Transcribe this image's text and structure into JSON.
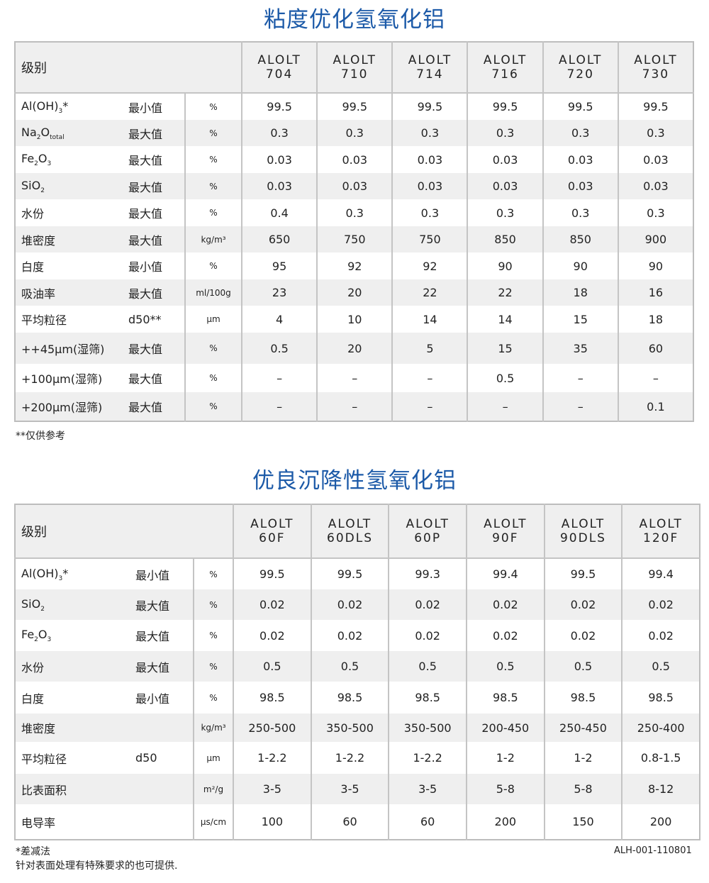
{
  "table1": {
    "title": "粘度优化氢氧化铝",
    "grade_label": "级别",
    "columns": [
      [
        "ALOLT",
        "704"
      ],
      [
        "ALOLT",
        "710"
      ],
      [
        "ALOLT",
        "714"
      ],
      [
        "ALOLT",
        "716"
      ],
      [
        "ALOLT",
        "720"
      ],
      [
        "ALOLT",
        "730"
      ]
    ],
    "rows": [
      {
        "name": [
          {
            "t": "Al(OH)"
          },
          {
            "t": "3",
            "sub": true
          },
          {
            "t": "*"
          }
        ],
        "qual": "最小值",
        "unit": "%",
        "values": [
          "99.5",
          "99.5",
          "99.5",
          "99.5",
          "99.5",
          "99.5"
        ]
      },
      {
        "name": [
          {
            "t": "Na"
          },
          {
            "t": "2",
            "sub": true
          },
          {
            "t": "O"
          },
          {
            "t": "total",
            "sub": true
          }
        ],
        "qual": "最大值",
        "unit": "%",
        "values": [
          "0.3",
          "0.3",
          "0.3",
          "0.3",
          "0.3",
          "0.3"
        ]
      },
      {
        "name": [
          {
            "t": "Fe"
          },
          {
            "t": "2",
            "sub": true
          },
          {
            "t": "O"
          },
          {
            "t": "3",
            "sub": true
          }
        ],
        "qual": "最大值",
        "unit": "%",
        "values": [
          "0.03",
          "0.03",
          "0.03",
          "0.03",
          "0.03",
          "0.03"
        ]
      },
      {
        "name": [
          {
            "t": "SiO"
          },
          {
            "t": "2",
            "sub": true
          }
        ],
        "qual": "最大值",
        "unit": "%",
        "values": [
          "0.03",
          "0.03",
          "0.03",
          "0.03",
          "0.03",
          "0.03"
        ]
      },
      {
        "name": [
          {
            "t": "水份"
          }
        ],
        "qual": "最大值",
        "unit": "%",
        "values": [
          "0.4",
          "0.3",
          "0.3",
          "0.3",
          "0.3",
          "0.3"
        ]
      },
      {
        "name": [
          {
            "t": "堆密度"
          }
        ],
        "qual": "最大值",
        "unit": "kg/m³",
        "values": [
          "650",
          "750",
          "750",
          "850",
          "850",
          "900"
        ]
      },
      {
        "name": [
          {
            "t": "白度"
          }
        ],
        "qual": "最小值",
        "unit": "%",
        "values": [
          "95",
          "92",
          "92",
          "90",
          "90",
          "90"
        ]
      },
      {
        "name": [
          {
            "t": "吸油率"
          }
        ],
        "qual": "最大值",
        "unit": "ml/100g",
        "values": [
          "23",
          "20",
          "22",
          "22",
          "18",
          "16"
        ]
      },
      {
        "name": [
          {
            "t": "平均粒径"
          }
        ],
        "qual": "d50**",
        "unit": "µm",
        "values": [
          "4",
          "10",
          "14",
          "14",
          "15",
          "18"
        ]
      },
      {
        "name": [
          {
            "t": "++45µm(湿筛)"
          }
        ],
        "qual": "最大值",
        "unit": "%",
        "values": [
          "0.5",
          "20",
          "5",
          "15",
          "35",
          "60"
        ]
      },
      {
        "name": [
          {
            "t": "+100µm(湿筛)"
          }
        ],
        "qual": "最大值",
        "unit": "%",
        "values": [
          "–",
          "–",
          "–",
          "0.5",
          "–",
          "–"
        ]
      },
      {
        "name": [
          {
            "t": "+200µm(湿筛)"
          }
        ],
        "qual": "最大值",
        "unit": "%",
        "values": [
          "–",
          "–",
          "–",
          "–",
          "–",
          "0.1"
        ]
      }
    ],
    "footnote": "**仅供参考"
  },
  "table2": {
    "title": "优良沉降性氢氧化铝",
    "grade_label": "级别",
    "columns": [
      [
        "ALOLT",
        "60F"
      ],
      [
        "ALOLT",
        "60DLS"
      ],
      [
        "ALOLT",
        "60P"
      ],
      [
        "ALOLT",
        "90F"
      ],
      [
        "ALOLT",
        "90DLS"
      ],
      [
        "ALOLT",
        "120F"
      ]
    ],
    "rows": [
      {
        "name": [
          {
            "t": "Al(OH)"
          },
          {
            "t": "3",
            "sub": true
          },
          {
            "t": "*"
          }
        ],
        "qual": "最小值",
        "unit": "%",
        "values": [
          "99.5",
          "99.5",
          "99.3",
          "99.4",
          "99.5",
          "99.4"
        ]
      },
      {
        "name": [
          {
            "t": "SiO"
          },
          {
            "t": "2",
            "sub": true
          }
        ],
        "qual": "最大值",
        "unit": "%",
        "values": [
          "0.02",
          "0.02",
          "0.02",
          "0.02",
          "0.02",
          "0.02"
        ]
      },
      {
        "name": [
          {
            "t": "Fe"
          },
          {
            "t": "2",
            "sub": true
          },
          {
            "t": "O"
          },
          {
            "t": "3",
            "sub": true
          }
        ],
        "qual": "最大值",
        "unit": "%",
        "values": [
          "0.02",
          "0.02",
          "0.02",
          "0.02",
          "0.02",
          "0.02"
        ]
      },
      {
        "name": [
          {
            "t": "水份"
          }
        ],
        "qual": "最大值",
        "unit": "%",
        "values": [
          "0.5",
          "0.5",
          "0.5",
          "0.5",
          "0.5",
          "0.5"
        ]
      },
      {
        "name": [
          {
            "t": "白度"
          }
        ],
        "qual": "最小值",
        "unit": "%",
        "values": [
          "98.5",
          "98.5",
          "98.5",
          "98.5",
          "98.5",
          "98.5"
        ]
      },
      {
        "name": [
          {
            "t": "堆密度"
          }
        ],
        "qual": "",
        "unit": "kg/m³",
        "values": [
          "250-500",
          "350-500",
          "350-500",
          "200-450",
          "250-450",
          "250-400"
        ]
      },
      {
        "name": [
          {
            "t": "平均粒径"
          }
        ],
        "qual": "d50",
        "unit": "µm",
        "values": [
          "1-2.2",
          "1-2.2",
          "1-2.2",
          "1-2",
          "1-2",
          "0.8-1.5"
        ]
      },
      {
        "name": [
          {
            "t": "比表面积"
          }
        ],
        "qual": "",
        "unit": "m²/g",
        "values": [
          "3-5",
          "3-5",
          "3-5",
          "5-8",
          "5-8",
          "8-12"
        ]
      },
      {
        "name": [
          {
            "t": "电导率"
          }
        ],
        "qual": "",
        "unit": "µs/cm",
        "values": [
          "100",
          "60",
          "60",
          "200",
          "150",
          "200"
        ]
      }
    ],
    "footnote1": "*差减法",
    "footnote2": "针对表面处理有特殊要求的也可提供.",
    "doc_code": "ALH-001-110801"
  }
}
